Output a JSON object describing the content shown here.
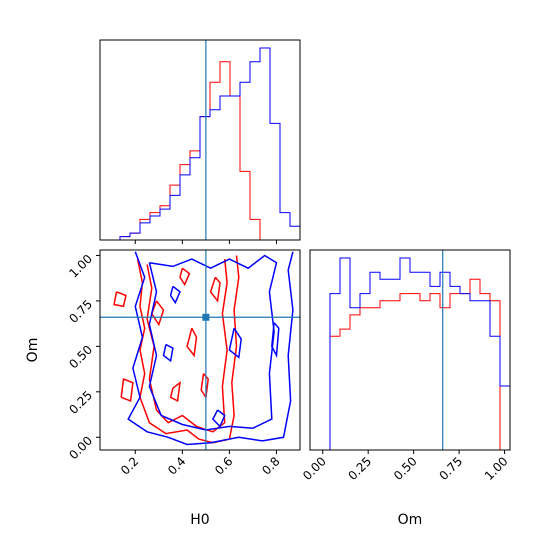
{
  "chart_data": {
    "type": "corner",
    "parameters": [
      "H0",
      "Om"
    ],
    "truth": {
      "H0": 0.5,
      "Om": 0.66
    },
    "colors": {
      "series_red": "#ff0000",
      "series_blue": "#0000ff",
      "truth": "#1f77b4"
    },
    "axes": {
      "H0": {
        "range": [
          0.05,
          0.9
        ],
        "ticks": [
          "0.2",
          "0.4",
          "0.6",
          "0.8"
        ],
        "tick_values": [
          0.2,
          0.4,
          0.6,
          0.8
        ]
      },
      "Om": {
        "range": [
          -0.07,
          1.03
        ],
        "ticks": [
          "0.00",
          "0.25",
          "0.50",
          "0.75",
          "1.00"
        ],
        "tick_values": [
          0.0,
          0.25,
          0.5,
          0.75,
          1.0
        ]
      }
    },
    "hist_H0": {
      "bin_edges": [
        0.05,
        0.0925,
        0.135,
        0.1775,
        0.22,
        0.2625,
        0.305,
        0.3475,
        0.39,
        0.4325,
        0.475,
        0.5175,
        0.56,
        0.6025,
        0.645,
        0.6875,
        0.73,
        0.7725,
        0.815,
        0.8575,
        0.9
      ],
      "series": [
        {
          "color": "red",
          "counts": [
            0,
            0,
            0.5,
            1,
            3,
            4,
            5,
            8,
            11,
            13,
            18,
            23,
            26,
            21,
            10,
            3,
            0,
            0,
            0,
            0
          ]
        },
        {
          "color": "blue",
          "counts": [
            0,
            0,
            0.5,
            1,
            2.5,
            3.5,
            4.5,
            6.5,
            9.5,
            12,
            18,
            19,
            21,
            21,
            23,
            26,
            28,
            17,
            4,
            2
          ]
        }
      ]
    },
    "hist_Om": {
      "bin_edges": [
        -0.07,
        -0.015,
        0.04,
        0.095,
        0.15,
        0.205,
        0.26,
        0.315,
        0.37,
        0.425,
        0.48,
        0.535,
        0.59,
        0.645,
        0.7,
        0.755,
        0.81,
        0.865,
        0.92,
        0.975,
        1.03
      ],
      "series": [
        {
          "color": "red",
          "counts": [
            0,
            0,
            16,
            17,
            19,
            20,
            20,
            21,
            21,
            22,
            22,
            21,
            22,
            20,
            22,
            22,
            24,
            22,
            21,
            0
          ]
        },
        {
          "color": "blue",
          "counts": [
            0,
            0,
            22,
            27,
            20,
            22,
            25,
            24,
            24,
            27,
            25,
            25,
            23,
            25,
            23,
            22,
            21,
            21,
            16,
            9
          ]
        }
      ]
    },
    "contours_red": [
      [
        [
          0.21,
          0.98
        ],
        [
          0.23,
          0.85
        ],
        [
          0.22,
          0.72
        ],
        [
          0.24,
          0.6
        ],
        [
          0.22,
          0.48
        ],
        [
          0.24,
          0.35
        ],
        [
          0.22,
          0.22
        ],
        [
          0.26,
          0.08
        ],
        [
          0.33,
          0.02
        ],
        [
          0.42,
          0.04
        ],
        [
          0.47,
          -0.01
        ],
        [
          0.53,
          -0.03
        ],
        [
          0.6,
          -0.01
        ],
        [
          0.62,
          0.12
        ],
        [
          0.61,
          0.3
        ],
        [
          0.63,
          0.5
        ],
        [
          0.62,
          0.7
        ],
        [
          0.64,
          0.88
        ],
        [
          0.63,
          1.0
        ]
      ],
      [
        [
          0.25,
          0.95
        ],
        [
          0.27,
          0.82
        ],
        [
          0.25,
          0.65
        ],
        [
          0.28,
          0.5
        ],
        [
          0.26,
          0.32
        ],
        [
          0.29,
          0.15
        ],
        [
          0.34,
          0.08
        ],
        [
          0.4,
          0.12
        ],
        [
          0.46,
          0.06
        ],
        [
          0.53,
          0.03
        ],
        [
          0.58,
          0.08
        ],
        [
          0.57,
          0.28
        ],
        [
          0.59,
          0.48
        ],
        [
          0.57,
          0.68
        ],
        [
          0.59,
          0.85
        ],
        [
          0.58,
          0.98
        ]
      ],
      [
        [
          0.12,
          0.8
        ],
        [
          0.16,
          0.78
        ],
        [
          0.15,
          0.72
        ],
        [
          0.11,
          0.73
        ],
        [
          0.12,
          0.8
        ]
      ],
      [
        [
          0.14,
          0.22
        ],
        [
          0.18,
          0.2
        ],
        [
          0.19,
          0.3
        ],
        [
          0.15,
          0.32
        ],
        [
          0.14,
          0.22
        ]
      ],
      [
        [
          0.29,
          0.75
        ],
        [
          0.32,
          0.7
        ],
        [
          0.3,
          0.62
        ],
        [
          0.27,
          0.68
        ],
        [
          0.29,
          0.75
        ]
      ],
      [
        [
          0.36,
          0.27
        ],
        [
          0.39,
          0.3
        ],
        [
          0.38,
          0.2
        ],
        [
          0.35,
          0.22
        ],
        [
          0.36,
          0.27
        ]
      ],
      [
        [
          0.44,
          0.6
        ],
        [
          0.46,
          0.55
        ],
        [
          0.45,
          0.45
        ],
        [
          0.42,
          0.5
        ],
        [
          0.44,
          0.6
        ]
      ],
      [
        [
          0.49,
          0.35
        ],
        [
          0.51,
          0.32
        ],
        [
          0.5,
          0.22
        ],
        [
          0.48,
          0.26
        ],
        [
          0.49,
          0.35
        ]
      ],
      [
        [
          0.54,
          0.88
        ],
        [
          0.56,
          0.85
        ],
        [
          0.55,
          0.75
        ],
        [
          0.52,
          0.8
        ],
        [
          0.54,
          0.88
        ]
      ],
      [
        [
          0.4,
          0.93
        ],
        [
          0.43,
          0.9
        ],
        [
          0.41,
          0.84
        ],
        [
          0.39,
          0.88
        ],
        [
          0.4,
          0.93
        ]
      ]
    ],
    "contours_blue": [
      [
        [
          0.2,
          1.02
        ],
        [
          0.24,
          0.88
        ],
        [
          0.2,
          0.72
        ],
        [
          0.23,
          0.55
        ],
        [
          0.19,
          0.38
        ],
        [
          0.22,
          0.22
        ],
        [
          0.17,
          0.1
        ],
        [
          0.25,
          0.03
        ],
        [
          0.34,
          0.0
        ],
        [
          0.42,
          -0.04
        ],
        [
          0.52,
          -0.03
        ],
        [
          0.64,
          0.0
        ],
        [
          0.74,
          -0.02
        ],
        [
          0.83,
          0.0
        ],
        [
          0.86,
          0.2
        ],
        [
          0.85,
          0.45
        ],
        [
          0.87,
          0.7
        ],
        [
          0.85,
          0.92
        ],
        [
          0.87,
          1.02
        ]
      ],
      [
        [
          0.26,
          0.96
        ],
        [
          0.29,
          0.8
        ],
        [
          0.26,
          0.62
        ],
        [
          0.29,
          0.45
        ],
        [
          0.26,
          0.28
        ],
        [
          0.31,
          0.12
        ],
        [
          0.4,
          0.07
        ],
        [
          0.5,
          0.04
        ],
        [
          0.6,
          0.06
        ],
        [
          0.7,
          0.05
        ],
        [
          0.78,
          0.1
        ],
        [
          0.77,
          0.35
        ],
        [
          0.79,
          0.58
        ],
        [
          0.77,
          0.8
        ],
        [
          0.8,
          0.96
        ],
        [
          0.75,
          1.0
        ],
        [
          0.68,
          0.93
        ],
        [
          0.6,
          0.98
        ],
        [
          0.52,
          0.93
        ],
        [
          0.44,
          0.98
        ],
        [
          0.36,
          0.94
        ],
        [
          0.26,
          0.96
        ]
      ],
      [
        [
          0.62,
          0.6
        ],
        [
          0.65,
          0.54
        ],
        [
          0.64,
          0.44
        ],
        [
          0.6,
          0.48
        ],
        [
          0.62,
          0.6
        ]
      ],
      [
        [
          0.79,
          0.63
        ],
        [
          0.81,
          0.6
        ],
        [
          0.8,
          0.45
        ],
        [
          0.78,
          0.5
        ],
        [
          0.79,
          0.63
        ]
      ],
      [
        [
          0.36,
          0.83
        ],
        [
          0.39,
          0.8
        ],
        [
          0.37,
          0.74
        ],
        [
          0.35,
          0.78
        ],
        [
          0.36,
          0.83
        ]
      ],
      [
        [
          0.55,
          0.15
        ],
        [
          0.58,
          0.12
        ],
        [
          0.56,
          0.06
        ],
        [
          0.53,
          0.1
        ],
        [
          0.55,
          0.15
        ]
      ],
      [
        [
          0.33,
          0.51
        ],
        [
          0.36,
          0.49
        ],
        [
          0.35,
          0.42
        ],
        [
          0.32,
          0.45
        ],
        [
          0.33,
          0.51
        ]
      ]
    ]
  }
}
